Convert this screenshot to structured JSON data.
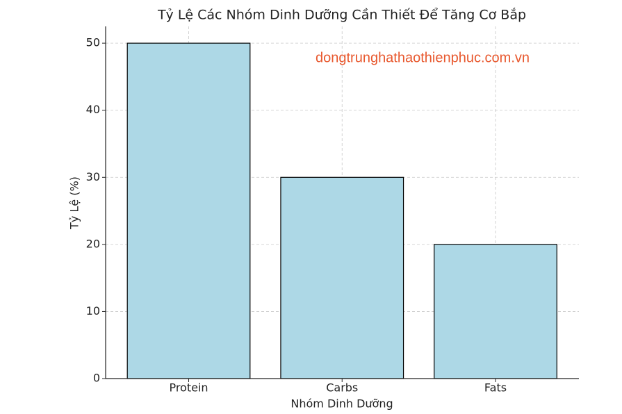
{
  "chart_data": {
    "type": "bar",
    "title": "Tỷ Lệ Các Nhóm Dinh Dưỡng Cần Thiết Để Tăng Cơ Bắp",
    "watermark": "dongtrunghathaothienphuc.com.vn",
    "x_label": "Nhóm Dinh Dưỡng",
    "y_label": "Tỷ Lệ (%)",
    "categories": [
      "Protein",
      "Carbs",
      "Fats"
    ],
    "values": [
      50,
      30,
      20
    ],
    "color": "#add8e6",
    "edge_color": "#000000",
    "watermark_color": "#e8582e",
    "ylim": [
      0,
      52.5
    ],
    "yticks": [
      0,
      10,
      20,
      30,
      40,
      50
    ],
    "grid": true
  }
}
